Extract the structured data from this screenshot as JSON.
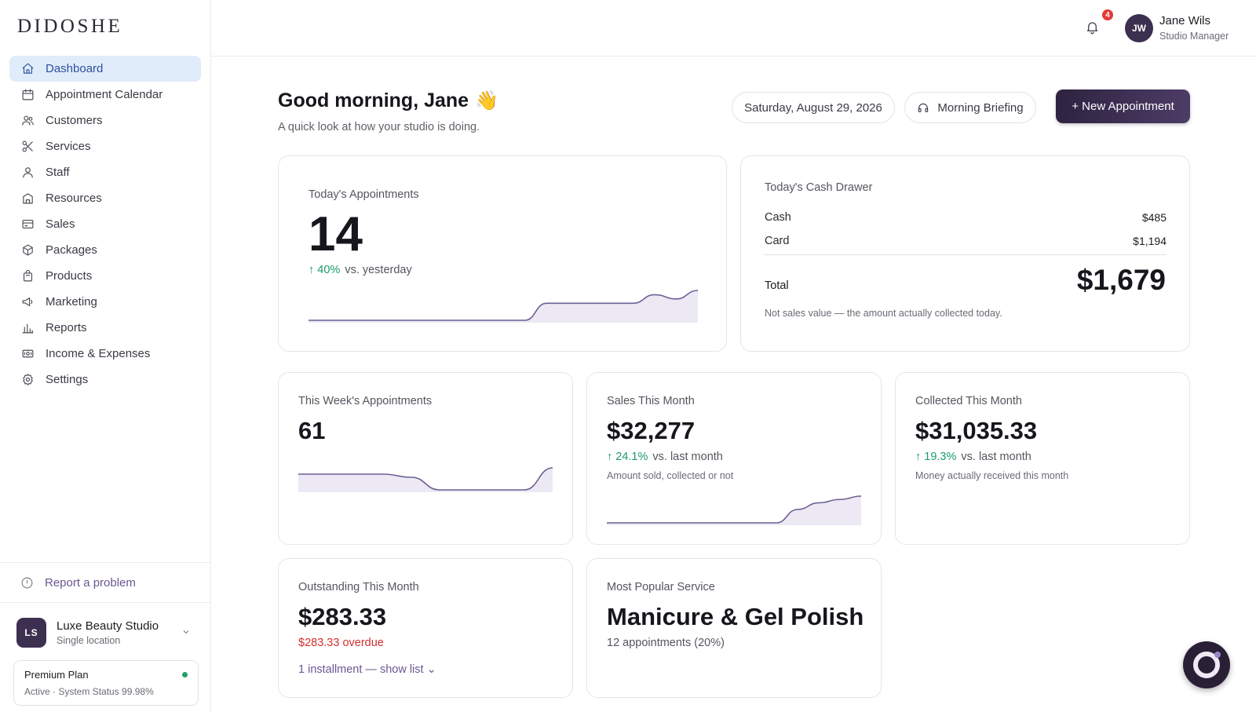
{
  "brand": {
    "logo": "DIDOSHE"
  },
  "sidebar": {
    "items": [
      {
        "label": "Dashboard",
        "icon": "home-icon",
        "active": true
      },
      {
        "label": "Appointment Calendar",
        "icon": "calendar-icon"
      },
      {
        "label": "Customers",
        "icon": "users-icon"
      },
      {
        "label": "Services",
        "icon": "scissors-icon"
      },
      {
        "label": "Staff",
        "icon": "user-icon"
      },
      {
        "label": "Resources",
        "icon": "building-icon"
      },
      {
        "label": "Sales",
        "icon": "credit-card-icon"
      },
      {
        "label": "Packages",
        "icon": "package-icon"
      },
      {
        "label": "Products",
        "icon": "bag-icon"
      },
      {
        "label": "Marketing",
        "icon": "megaphone-icon"
      },
      {
        "label": "Reports",
        "icon": "bar-chart-icon"
      },
      {
        "label": "Income & Expenses",
        "icon": "banknote-icon"
      },
      {
        "label": "Settings",
        "icon": "gear-icon"
      }
    ],
    "report_problem": "Report a problem",
    "studio": {
      "initials": "LS",
      "name": "Luxe Beauty Studio",
      "subtitle": "Single location"
    },
    "plan": {
      "name": "Premium Plan",
      "status": "Active · System Status 99.98%"
    }
  },
  "header": {
    "notifications_count": "4",
    "user": {
      "initials": "JW",
      "name": "Jane Wils",
      "role": "Studio Manager"
    }
  },
  "main": {
    "greeting": "Good morning, Jane",
    "greeting_emoji": "👋",
    "subtitle": "A quick look at how your studio is doing.",
    "date": "Saturday, August 29, 2026",
    "briefing_label": "Morning Briefing",
    "new_appointment_label": "+ New Appointment"
  },
  "cards": {
    "today_appointments": {
      "title": "Today's Appointments",
      "value": "14",
      "trend": "↑ 40%",
      "trend_text": "vs. yesterday",
      "spark": [
        0,
        0,
        0,
        0,
        0,
        0,
        0,
        0,
        0,
        0,
        0,
        4,
        4,
        4,
        4,
        4,
        6,
        5,
        7
      ]
    },
    "cash_drawer": {
      "title": "Today's Cash Drawer",
      "cash_label": "Cash",
      "cash_value": "$485",
      "card_label": "Card",
      "card_value": "$1,194",
      "total_label": "Total",
      "total_value": "$1,679",
      "note": "Not sales value — the amount actually collected today."
    },
    "week_appointments": {
      "title": "This Week's Appointments",
      "value": "61",
      "spark": [
        5,
        5,
        5,
        5,
        4,
        0,
        0,
        0,
        0,
        7
      ]
    },
    "sales_month": {
      "title": "Sales This Month",
      "value": "$32,277",
      "trend": "↑ 24.1%",
      "trend_text": "vs. last month",
      "note": "Amount sold, collected or not",
      "spark": [
        0,
        0,
        0,
        0,
        0,
        0,
        0,
        0,
        0,
        4,
        6,
        7,
        8
      ]
    },
    "collected_month": {
      "title": "Collected This Month",
      "value": "$31,035.33",
      "trend": "↑ 19.3%",
      "trend_text": "vs. last month",
      "note": "Money actually received this month"
    },
    "outstanding_month": {
      "title": "Outstanding This Month",
      "value": "$283.33",
      "overdue": "$283.33 overdue",
      "installment_link": "1 installment — show list ⌄"
    },
    "popular_service": {
      "title": "Most Popular Service",
      "value": "Manicure & Gel Polish",
      "detail": "12 appointments (20%)"
    }
  },
  "colors": {
    "accent": "#3d2f4f",
    "positive": "#1c9a6a",
    "negative": "#d32f2f",
    "active_nav": "#e0ecfa"
  }
}
